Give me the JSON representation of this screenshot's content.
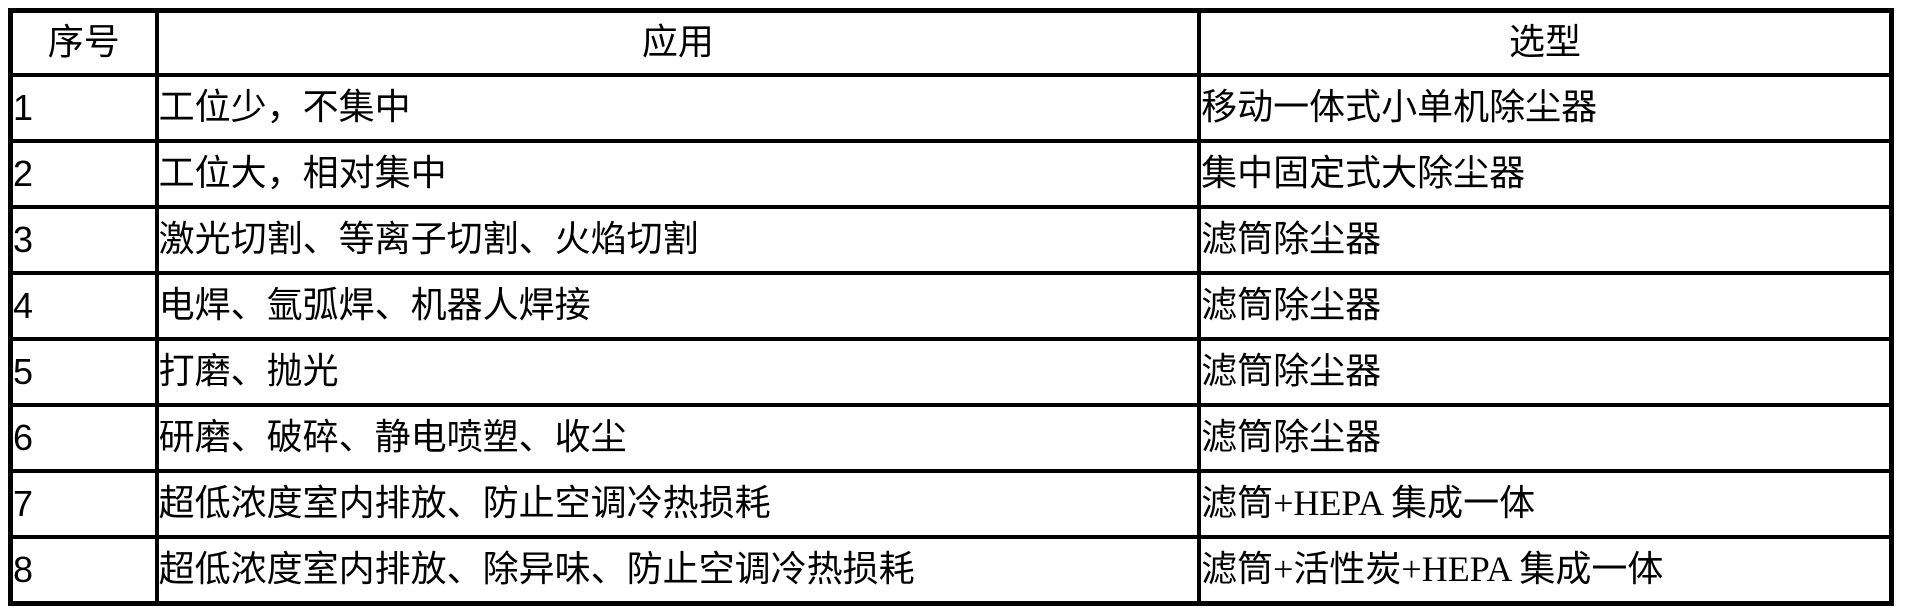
{
  "table": {
    "title": "dust-collector-selection-table",
    "columns": [
      {
        "key": "index",
        "label": "序号"
      },
      {
        "key": "application",
        "label": "应用"
      },
      {
        "key": "selection",
        "label": "选型"
      }
    ],
    "rows": [
      {
        "index": "1",
        "application": "工位少，不集中",
        "selection": "移动一体式小单机除尘器"
      },
      {
        "index": "2",
        "application": "工位大，相对集中",
        "selection": "集中固定式大除尘器"
      },
      {
        "index": "3",
        "application": "激光切割、等离子切割、火焰切割",
        "selection": "滤筒除尘器"
      },
      {
        "index": "4",
        "application": "电焊、氩弧焊、机器人焊接",
        "selection": "滤筒除尘器"
      },
      {
        "index": "5",
        "application": "打磨、抛光",
        "selection": "滤筒除尘器"
      },
      {
        "index": "6",
        "application": "研磨、破碎、静电喷塑、收尘",
        "selection": "滤筒除尘器"
      },
      {
        "index": "7",
        "application": "超低浓度室内排放、防止空调冷热损耗",
        "selection": "滤筒+HEPA 集成一体"
      },
      {
        "index": "8",
        "application": "超低浓度室内排放、除异味、防止空调冷热损耗",
        "selection": "滤筒+活性炭+HEPA 集成一体"
      }
    ],
    "colors": {
      "border": "#000000",
      "text": "#000000",
      "background": "#ffffff"
    }
  }
}
